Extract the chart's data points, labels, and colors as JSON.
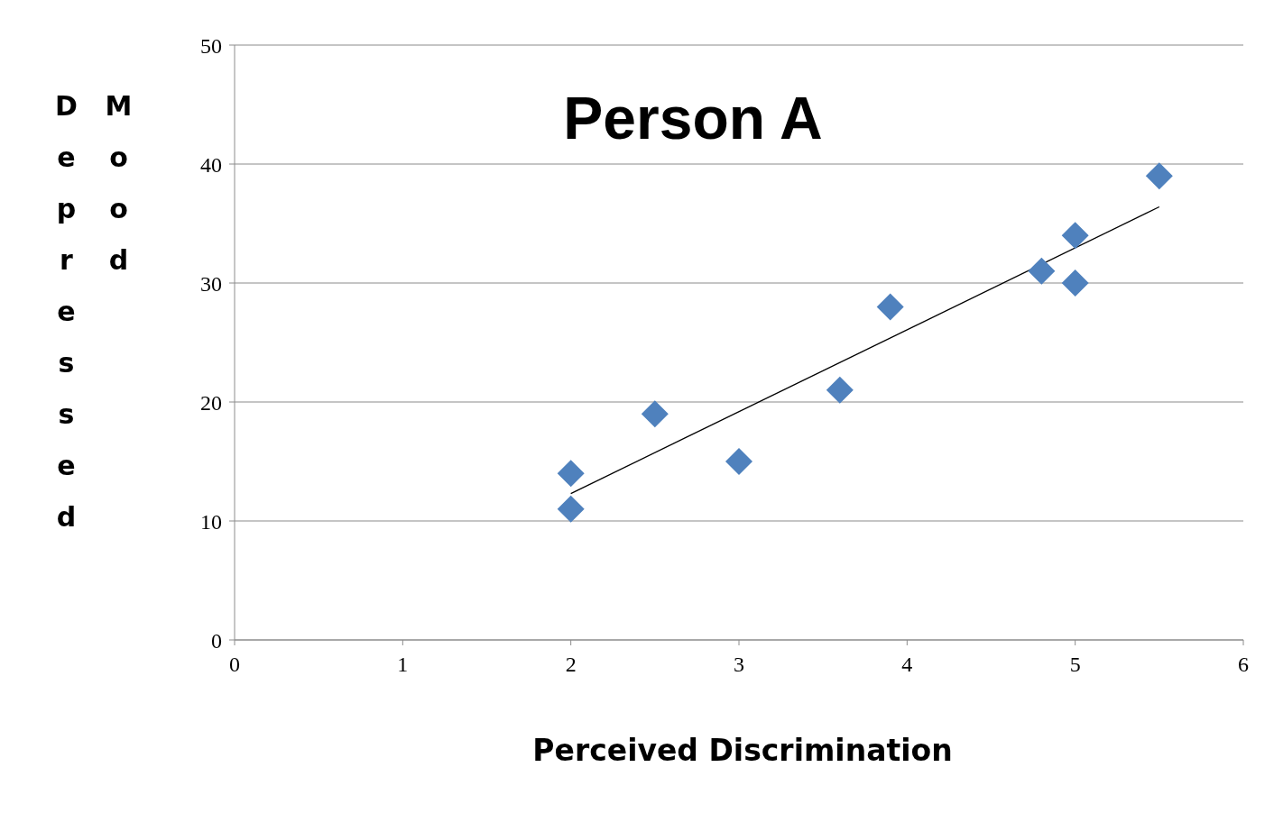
{
  "chart_data": {
    "type": "scatter",
    "title": "Person A",
    "xlabel": "Perceived Discrimination",
    "ylabel": "Depressed Mood",
    "xlim": [
      0,
      6
    ],
    "xticks": [
      0,
      1,
      2,
      3,
      4,
      5,
      6
    ],
    "ylim": [
      0,
      50
    ],
    "yticks": [
      0,
      10,
      20,
      30,
      40,
      50
    ],
    "grid": "y",
    "series": [
      {
        "marker": "diamond",
        "color": "#4f81bd",
        "x": [
          2,
          2,
          2.5,
          3,
          3.6,
          3.9,
          4.8,
          5,
          5,
          5.5
        ],
        "values": [
          14,
          11,
          19,
          15,
          21,
          28,
          31,
          34,
          30,
          39
        ]
      },
      {
        "type": "line",
        "marker": "none",
        "color": "#000000",
        "x": [
          2,
          5.5
        ],
        "values": [
          12.3,
          36.4
        ]
      }
    ]
  }
}
